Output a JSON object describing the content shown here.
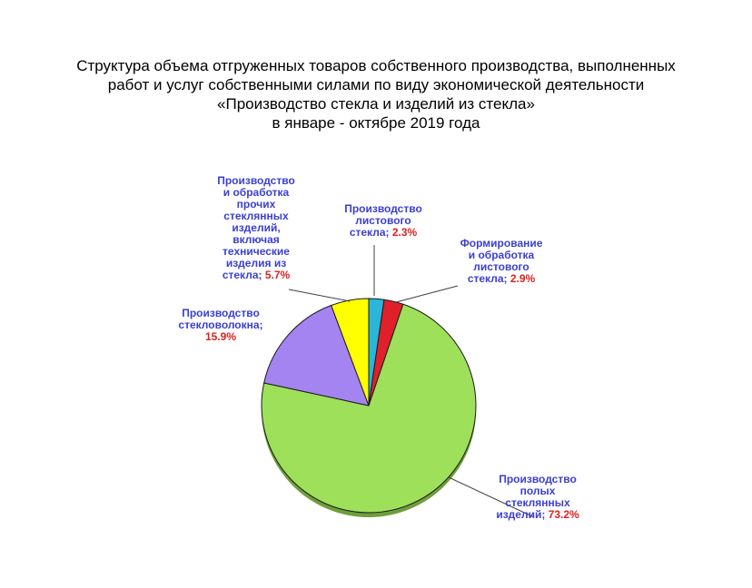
{
  "title_lines": [
    "Структура объема отгруженных товаров собственного производства, выполненных",
    "работ и услуг собственными силами по виду экономической деятельности",
    "«Производство стекла и изделий из стекла»",
    "в январе - октябре 2019 года"
  ],
  "chart_data": {
    "type": "pie",
    "title": "Структура объема отгруженных товаров собственного производства, выполненных работ и услуг собственными силами по виду экономической деятельности «Производство стекла и изделий из стекла» в январе - октябре 2019 года",
    "unit": "%",
    "slices": [
      {
        "name": "Производство листового стекла",
        "label_lines": [
          "Производство",
          "листового",
          "стекла;"
        ],
        "value": 2.3,
        "value_label": "2.3%",
        "color": "#2bb5d8"
      },
      {
        "name": "Формирование и обработка листового стекла",
        "label_lines": [
          "Формирование",
          "и обработка",
          "листового",
          "стекла;"
        ],
        "value": 2.9,
        "value_label": "2.9%",
        "color": "#e0202a"
      },
      {
        "name": "Производство полых стеклянных изделий",
        "label_lines": [
          "Производство",
          "полых",
          "стеклянных",
          "изделий;"
        ],
        "value": 73.2,
        "value_label": "73.2%",
        "color": "#9ee05a"
      },
      {
        "name": "Производство стекловолокна",
        "label_lines": [
          "Производство",
          "стекловолокна;"
        ],
        "value": 15.9,
        "value_label": "15.9%",
        "color": "#a384f0"
      },
      {
        "name": "Производство и обработка прочих стеклянных изделий, включая технические изделия из стекла",
        "label_lines": [
          "Производство",
          "и обработка",
          "прочих",
          "стеклянных",
          "изделий,",
          "включая",
          "технические",
          "изделия из",
          "стекла;"
        ],
        "value": 5.7,
        "value_label": "5.7%",
        "color": "#ffff00"
      }
    ]
  }
}
